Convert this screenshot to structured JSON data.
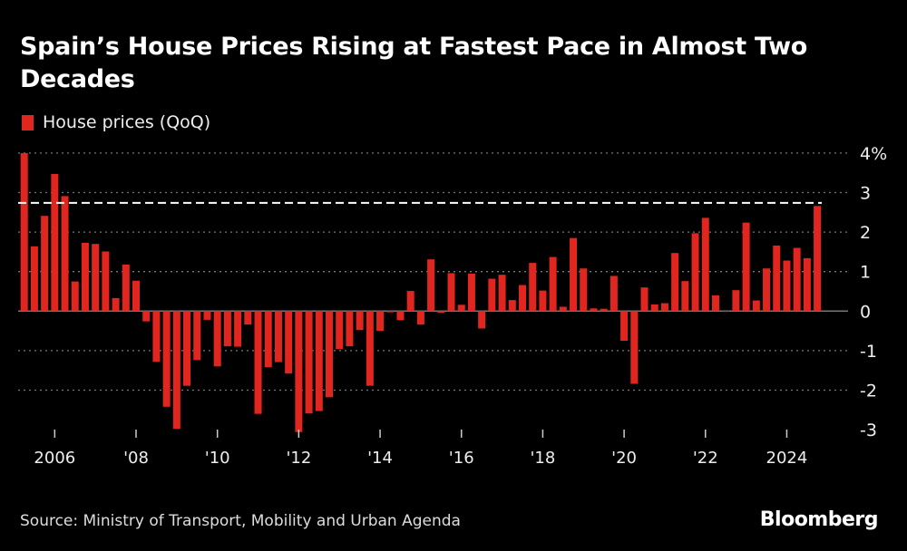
{
  "header": {
    "title": "Spain’s House Prices Rising at Fastest Pace in Almost Two Decades"
  },
  "footer": {
    "source": "Source: Ministry of Transport, Mobility and Urban Agenda",
    "logo": "Bloomberg"
  },
  "colors": {
    "bar": "#e0261f",
    "background": "#000000",
    "reference_line": "#ffffff"
  },
  "chart_data": {
    "type": "bar",
    "title": "Spain’s House Prices Rising at Fastest Pace in Almost Two Decades",
    "xlabel": "",
    "ylabel": "",
    "y_unit": "%",
    "ylim": [
      -3,
      4
    ],
    "yticks": [
      "4%",
      "3",
      "2",
      "1",
      "0",
      "-1",
      "-2",
      "-3"
    ],
    "ytick_values": [
      4,
      3,
      2,
      1,
      0,
      -1,
      -2,
      -3
    ],
    "xticks": [
      {
        "label": "2006",
        "year": 2006
      },
      {
        "label": "'08",
        "year": 2008
      },
      {
        "label": "'10",
        "year": 2010
      },
      {
        "label": "'12",
        "year": 2012
      },
      {
        "label": "'14",
        "year": 2014
      },
      {
        "label": "'16",
        "year": 2016
      },
      {
        "label": "'18",
        "year": 2018
      },
      {
        "label": "'20",
        "year": 2020
      },
      {
        "label": "'22",
        "year": 2022
      },
      {
        "label": "2024",
        "year": 2024
      }
    ],
    "grid": true,
    "axis_side": "right",
    "legend": {
      "placement": "top-left",
      "entries": [
        "House prices (QoQ)"
      ]
    },
    "start_period": "2005 Q2",
    "end_period": "2024 Q4",
    "reference_line": {
      "value": 2.74,
      "style": "dashed"
    },
    "series": [
      {
        "name": "House prices (QoQ)",
        "values": [
          4.0,
          1.64,
          2.41,
          3.47,
          2.91,
          0.75,
          1.73,
          1.7,
          1.51,
          0.33,
          1.18,
          0.77,
          -0.26,
          -1.28,
          -2.42,
          -2.98,
          -1.89,
          -1.24,
          -0.22,
          -1.4,
          -0.89,
          -0.9,
          -0.34,
          -2.6,
          -1.42,
          -1.29,
          -1.58,
          -3.06,
          -2.59,
          -2.53,
          -2.18,
          -0.96,
          -0.89,
          -0.48,
          -1.89,
          -0.5,
          -0.03,
          -0.23,
          0.51,
          -0.34,
          1.31,
          -0.04,
          0.96,
          0.16,
          0.95,
          -0.44,
          0.82,
          0.92,
          0.28,
          0.66,
          1.22,
          0.52,
          1.37,
          0.11,
          1.85,
          1.08,
          0.07,
          0.06,
          0.89,
          -0.75,
          -1.84,
          0.6,
          0.17,
          0.2,
          1.47,
          0.76,
          1.97,
          2.36,
          0.4,
          -0.02,
          0.53,
          2.24,
          0.27,
          1.08,
          1.66,
          1.28,
          1.6,
          1.34,
          2.66
        ]
      }
    ]
  }
}
